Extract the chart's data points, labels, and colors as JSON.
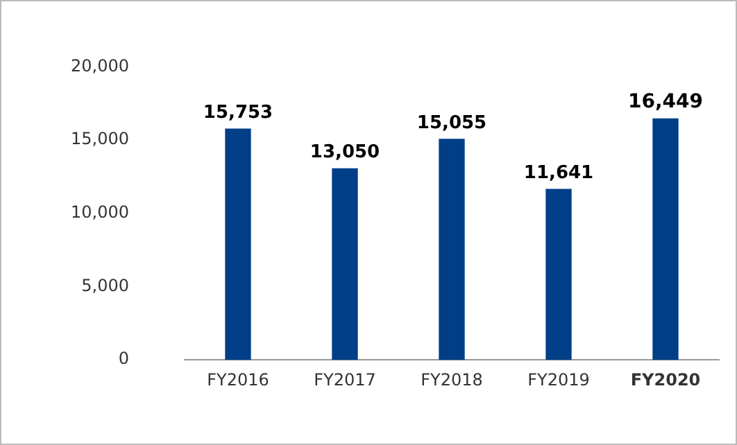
{
  "chart_data": {
    "type": "bar",
    "categories": [
      "FY2016",
      "FY2017",
      "FY2018",
      "FY2019",
      "FY2020"
    ],
    "values": [
      15753,
      13050,
      15055,
      11641,
      16449
    ],
    "value_labels": [
      "15,753",
      "13,050",
      "15,055",
      "11,641",
      "16,449"
    ],
    "color": "#003f87",
    "ylim": [
      0,
      20000
    ],
    "yticks": [
      {
        "value": 0,
        "label": "0"
      },
      {
        "value": 5000,
        "label": "5,000"
      },
      {
        "value": 10000,
        "label": "10,000"
      },
      {
        "value": 15000,
        "label": "15,000"
      },
      {
        "value": 20000,
        "label": "20,000"
      }
    ],
    "grid": false,
    "legend": false
  }
}
